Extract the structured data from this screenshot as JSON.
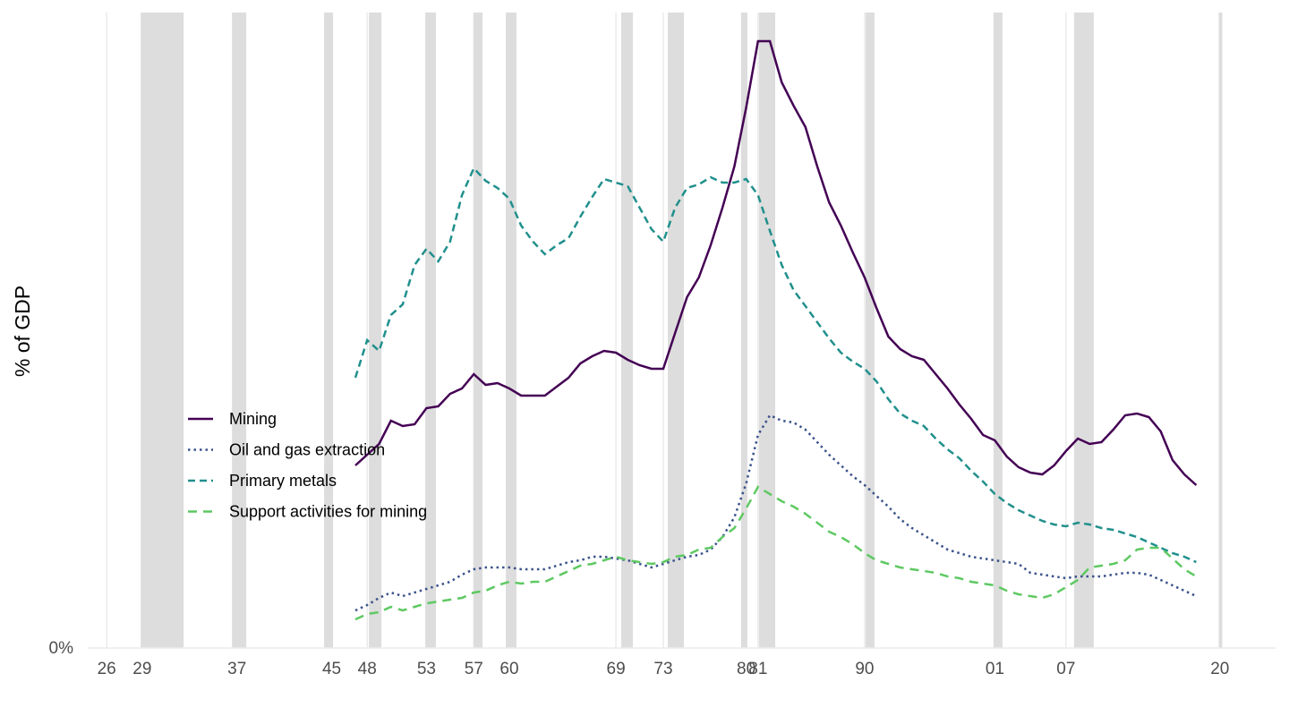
{
  "chart_data": {
    "type": "line",
    "ylabel": "% of GDP",
    "xlim": [
      1924.4,
      2024.7
    ],
    "ylim": [
      0,
      3.5
    ],
    "xticks": [
      {
        "value": 1926,
        "label": "26"
      },
      {
        "value": 1929,
        "label": "29"
      },
      {
        "value": 1937,
        "label": "37"
      },
      {
        "value": 1945,
        "label": "45"
      },
      {
        "value": 1948,
        "label": "48"
      },
      {
        "value": 1953,
        "label": "53"
      },
      {
        "value": 1957,
        "label": "57"
      },
      {
        "value": 1960,
        "label": "60"
      },
      {
        "value": 1969,
        "label": "69"
      },
      {
        "value": 1973,
        "label": "73"
      },
      {
        "value": 1980,
        "label": "80"
      },
      {
        "value": 1981,
        "label": "81"
      },
      {
        "value": 1990,
        "label": "90"
      },
      {
        "value": 2001,
        "label": "01"
      },
      {
        "value": 2007,
        "label": "07"
      },
      {
        "value": 2020,
        "label": "20"
      }
    ],
    "yticks": [
      {
        "value": 0,
        "label": "0%"
      }
    ],
    "grid": true,
    "recession_color": "#dddddd",
    "recessions": [
      [
        1928.87,
        1932.5
      ],
      [
        1936.58,
        1937.79
      ],
      [
        1944.36,
        1945.12
      ],
      [
        1948.14,
        1949.2
      ],
      [
        1952.9,
        1953.8
      ],
      [
        1956.98,
        1957.74
      ],
      [
        1959.7,
        1960.6
      ],
      [
        1969.45,
        1970.43
      ],
      [
        1973.38,
        1974.74
      ],
      [
        1979.57,
        1980.1
      ],
      [
        1981.08,
        1982.45
      ],
      [
        1990.08,
        1990.83
      ],
      [
        2000.88,
        2001.64
      ],
      [
        2007.68,
        2009.35
      ],
      [
        2019.9,
        2020.2
      ]
    ],
    "x": [
      1947,
      1948,
      1949,
      1950,
      1951,
      1952,
      1953,
      1954,
      1955,
      1956,
      1957,
      1958,
      1959,
      1960,
      1961,
      1962,
      1963,
      1964,
      1965,
      1966,
      1967,
      1968,
      1969,
      1970,
      1971,
      1972,
      1973,
      1974,
      1975,
      1976,
      1977,
      1978,
      1979,
      1980,
      1981,
      1982,
      1983,
      1984,
      1985,
      1986,
      1987,
      1988,
      1989,
      1990,
      1991,
      1992,
      1993,
      1994,
      1995,
      1996,
      1997,
      1998,
      1999,
      2000,
      2001,
      2002,
      2003,
      2004,
      2005,
      2006,
      2007,
      2008,
      2009,
      2010,
      2011,
      2012,
      2013,
      2014,
      2015,
      2016,
      2017,
      2018
    ],
    "series": [
      {
        "name": "Mining",
        "color": "#440154",
        "linetype": "solid",
        "values": [
          1.02,
          1.08,
          1.14,
          1.27,
          1.24,
          1.25,
          1.34,
          1.35,
          1.42,
          1.45,
          1.53,
          1.47,
          1.48,
          1.45,
          1.41,
          1.41,
          1.41,
          1.46,
          1.51,
          1.59,
          1.63,
          1.66,
          1.65,
          1.61,
          1.58,
          1.56,
          1.56,
          1.76,
          1.96,
          2.07,
          2.25,
          2.46,
          2.69,
          3.02,
          3.39,
          3.39,
          3.16,
          3.03,
          2.91,
          2.69,
          2.49,
          2.36,
          2.21,
          2.07,
          1.9,
          1.74,
          1.67,
          1.63,
          1.61,
          1.53,
          1.45,
          1.36,
          1.28,
          1.19,
          1.16,
          1.07,
          1.01,
          0.98,
          0.97,
          1.02,
          1.1,
          1.17,
          1.14,
          1.15,
          1.22,
          1.3,
          1.31,
          1.29,
          1.21,
          1.05,
          0.97,
          0.91
        ]
      },
      {
        "name": "Oil and gas extraction",
        "color": "#3b528b",
        "linetype": "dotted",
        "values": [
          0.21,
          0.24,
          0.28,
          0.31,
          0.29,
          0.31,
          0.33,
          0.35,
          0.37,
          0.41,
          0.44,
          0.45,
          0.45,
          0.45,
          0.44,
          0.44,
          0.44,
          0.46,
          0.48,
          0.49,
          0.51,
          0.51,
          0.5,
          0.49,
          0.47,
          0.45,
          0.47,
          0.49,
          0.51,
          0.52,
          0.55,
          0.62,
          0.73,
          0.92,
          1.19,
          1.3,
          1.27,
          1.26,
          1.22,
          1.15,
          1.08,
          1.02,
          0.96,
          0.91,
          0.85,
          0.79,
          0.72,
          0.67,
          0.63,
          0.59,
          0.55,
          0.53,
          0.51,
          0.5,
          0.49,
          0.48,
          0.47,
          0.42,
          0.41,
          0.4,
          0.39,
          0.4,
          0.4,
          0.4,
          0.41,
          0.42,
          0.42,
          0.41,
          0.38,
          0.35,
          0.32,
          0.29
        ]
      },
      {
        "name": "Primary metals",
        "color": "#21908c",
        "linetype": "dashed",
        "values": [
          1.51,
          1.72,
          1.66,
          1.86,
          1.92,
          2.14,
          2.23,
          2.16,
          2.27,
          2.53,
          2.68,
          2.61,
          2.57,
          2.51,
          2.36,
          2.27,
          2.2,
          2.25,
          2.29,
          2.41,
          2.52,
          2.62,
          2.6,
          2.58,
          2.46,
          2.34,
          2.27,
          2.46,
          2.57,
          2.59,
          2.63,
          2.6,
          2.6,
          2.62,
          2.53,
          2.33,
          2.14,
          2.0,
          1.91,
          1.82,
          1.73,
          1.65,
          1.6,
          1.56,
          1.49,
          1.39,
          1.31,
          1.27,
          1.24,
          1.17,
          1.11,
          1.06,
          0.99,
          0.93,
          0.86,
          0.81,
          0.77,
          0.74,
          0.71,
          0.69,
          0.68,
          0.7,
          0.69,
          0.67,
          0.66,
          0.64,
          0.62,
          0.59,
          0.56,
          0.53,
          0.51,
          0.48
        ]
      },
      {
        "name": "Support activities for mining",
        "color": "#5ec962",
        "linetype": "longdash",
        "values": [
          0.16,
          0.19,
          0.2,
          0.23,
          0.21,
          0.23,
          0.25,
          0.26,
          0.27,
          0.28,
          0.31,
          0.32,
          0.35,
          0.37,
          0.36,
          0.37,
          0.37,
          0.4,
          0.43,
          0.46,
          0.47,
          0.49,
          0.51,
          0.49,
          0.48,
          0.47,
          0.48,
          0.51,
          0.52,
          0.55,
          0.56,
          0.62,
          0.67,
          0.78,
          0.9,
          0.86,
          0.82,
          0.79,
          0.75,
          0.7,
          0.65,
          0.62,
          0.58,
          0.53,
          0.49,
          0.47,
          0.45,
          0.44,
          0.43,
          0.42,
          0.4,
          0.39,
          0.37,
          0.36,
          0.35,
          0.32,
          0.3,
          0.29,
          0.28,
          0.3,
          0.34,
          0.38,
          0.45,
          0.46,
          0.47,
          0.49,
          0.55,
          0.56,
          0.56,
          0.5,
          0.44,
          0.4
        ]
      }
    ]
  }
}
